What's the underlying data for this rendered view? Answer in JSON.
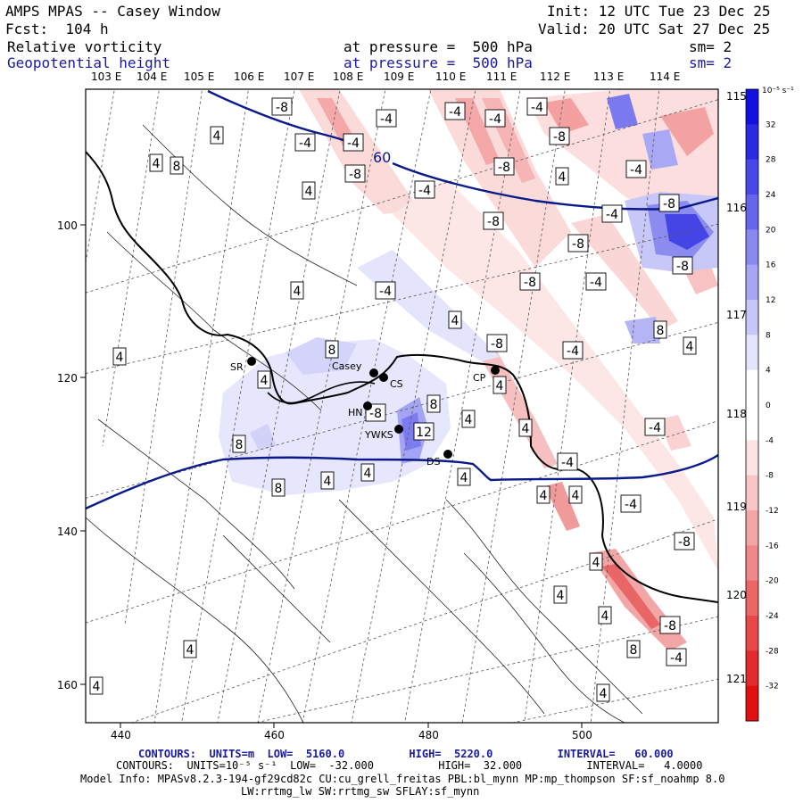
{
  "header": {
    "title": "AMPS MPAS -- Casey Window",
    "init": "Init: 12 UTC Tue 23 Dec 25",
    "forecast": "Fcst:  104 h",
    "valid": "Valid: 20 UTC Sat 27 Dec 25",
    "field1": {
      "name": "Relative vorticity",
      "level": "at pressure =  500 hPa",
      "smooth": "sm= 2"
    },
    "field2": {
      "name": "Geopotential height",
      "level": "at pressure =  500 hPa",
      "smooth": "sm= 2"
    }
  },
  "map": {
    "top_longitudes": [
      "103 E",
      "104 E",
      "105 E",
      "106 E",
      "107 E",
      "108 E",
      "109 E",
      "110 E",
      "111 E",
      "112 E",
      "113 E",
      "114 E"
    ],
    "right_longitudes": [
      "115 E",
      "116 E",
      "117 E",
      "118 E",
      "119 E",
      "120 E",
      "121 E"
    ],
    "x_ticks": [
      "440",
      "460",
      "480",
      "500"
    ],
    "y_ticks": [
      "100",
      "120",
      "140",
      "160"
    ],
    "height_contour_label": "60",
    "stations": [
      {
        "id": "SR",
        "label": "SR"
      },
      {
        "id": "casey",
        "label": "Casey"
      },
      {
        "id": "cs",
        "label": "CS"
      },
      {
        "id": "hn",
        "label": "HN"
      },
      {
        "id": "ywks",
        "label": "YWKS"
      },
      {
        "id": "ds",
        "label": "DS"
      },
      {
        "id": "cp",
        "label": "CP"
      }
    ],
    "vorticity_labels": [
      "-8",
      "-8",
      "-4",
      "-4",
      "-4",
      "-4",
      "-4",
      "-8",
      "-8",
      "-8",
      "-8",
      "-8",
      "-8",
      "-8",
      "-4",
      "-4",
      "-4",
      "-4",
      "-8",
      "-4",
      "-4",
      "-4",
      "-4",
      "-4",
      "-8",
      "-8",
      "-4",
      "-4",
      "-8",
      "4",
      "4",
      "4",
      "4",
      "4",
      "4",
      "8",
      "4",
      "4",
      "8",
      "8",
      "4",
      "12",
      "8",
      "8",
      "4",
      "4",
      "4",
      "4",
      "8",
      "4",
      "4",
      "4",
      "4",
      "4",
      "4",
      "4",
      "4",
      "4",
      "8",
      "4"
    ]
  },
  "colorbar": {
    "unit": "10⁻⁵ s⁻¹",
    "labels": [
      "32",
      "28",
      "24",
      "20",
      "16",
      "12",
      "8",
      "4",
      "0",
      "-4",
      "-8",
      "-12",
      "-16",
      "-20",
      "-24",
      "-28",
      "-32"
    ],
    "colors": [
      "#1010e0",
      "#2a2ae4",
      "#4848e8",
      "#6666ec",
      "#8888f0",
      "#a6a6f4",
      "#c6c6f8",
      "#e4e4fc",
      "#ffffff",
      "#ffffff",
      "#fce4e4",
      "#f8c6c6",
      "#f4a6a6",
      "#f08888",
      "#ec6666",
      "#e84848",
      "#e42a2a",
      "#e01010"
    ]
  },
  "footer": {
    "line1": "CONTOURS:  UNITS=m  LOW=  5160.0          HIGH=  5220.0          INTERVAL=   60.000",
    "line2": "CONTOURS:  UNITS=10⁻⁵ s⁻¹  LOW=  -32.000          HIGH=  32.000          INTERVAL=   4.0000",
    "line3": "Model Info: MPASv8.2.3-194-gf29cd82c CU:cu_grell_freitas PBL:bl_mynn MP:mp_thompson SF:sf_noahmp 8.0",
    "line4": "LW:rrtmg_lw SW:rrtmg_sw SFLAY:sf_mynn"
  }
}
